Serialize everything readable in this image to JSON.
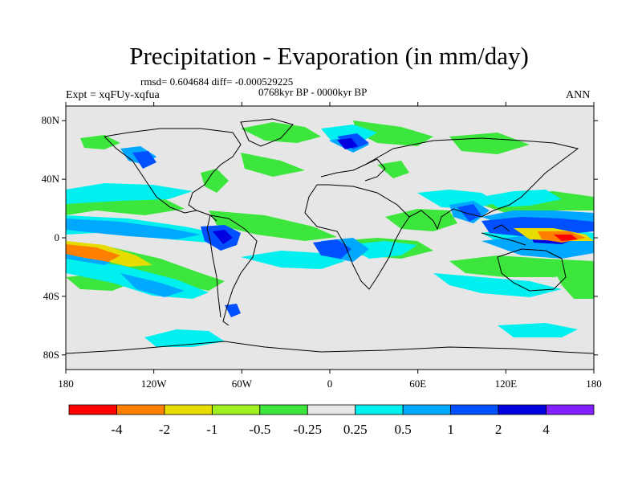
{
  "title": "Precipitation - Evaporation (in mm/day)",
  "stats": "rmsd= 0.604684 diff= -0.000529225",
  "period": "0768kyr BP - 0000kyr BP",
  "experiment": "Expt = xqFUy-xqfua",
  "season": "ANN",
  "map": {
    "lat_ticks": [
      "80N",
      "40N",
      "0",
      "40S",
      "80S"
    ],
    "lon_ticks": [
      "180",
      "120W",
      "60W",
      "0",
      "60E",
      "120E",
      "180"
    ]
  },
  "colorbar": {
    "colors": [
      "#ff0000",
      "#ff8000",
      "#e6dc00",
      "#a0f020",
      "#3ce63c",
      "#e6e6e6",
      "#00f0f0",
      "#00a8ff",
      "#0050ff",
      "#0000e0",
      "#8020ff"
    ],
    "labels": [
      "-4",
      "-2",
      "-1",
      "-0.5",
      "-0.25",
      "0.25",
      "0.5",
      "1",
      "2",
      "4"
    ]
  }
}
